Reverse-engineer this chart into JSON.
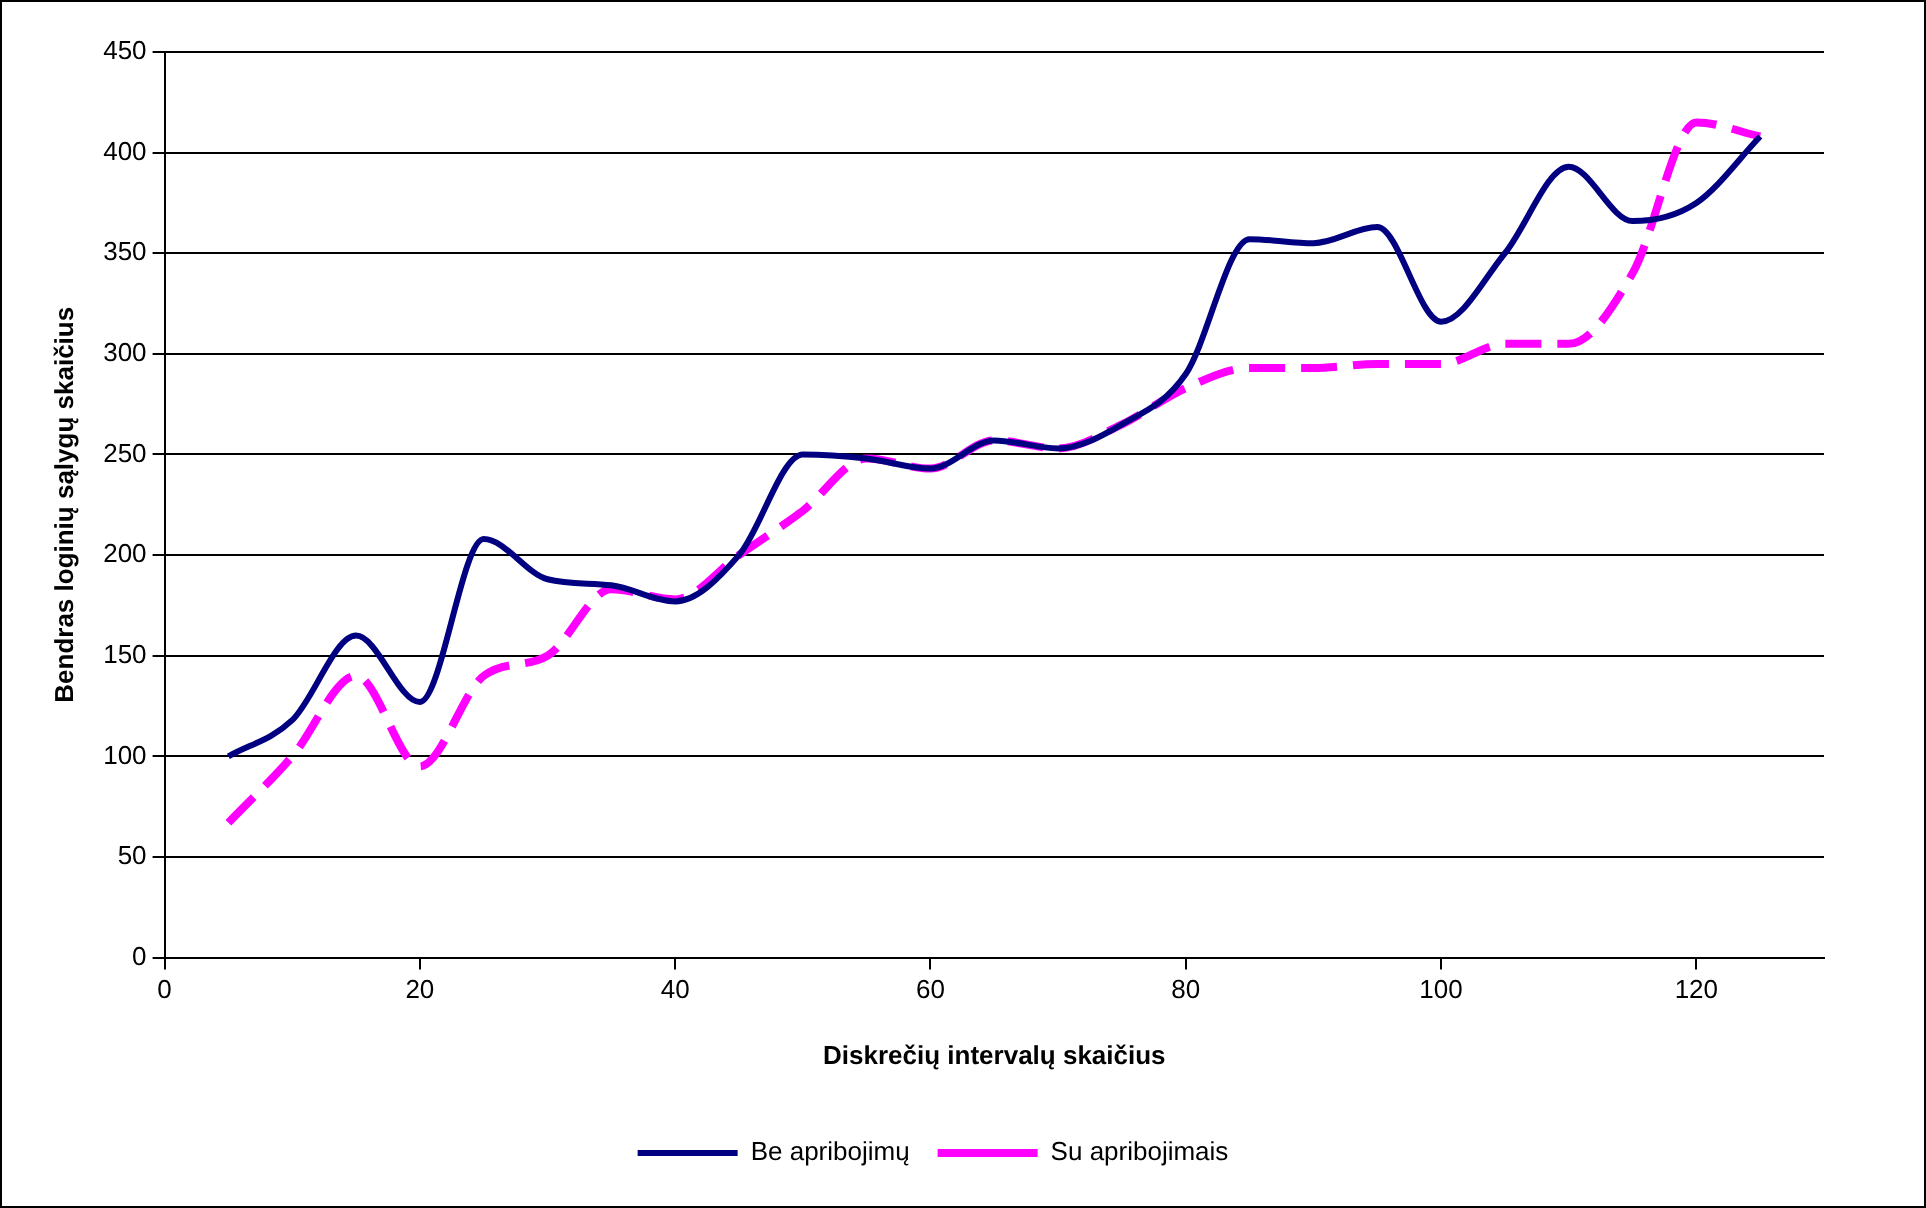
{
  "chart_data": {
    "type": "line",
    "xlabel": "Diskrečių intervalų skaičius",
    "ylabel": "Bendras loginių sąlygų skaičius",
    "x": [
      5,
      10,
      15,
      20,
      25,
      30,
      35,
      40,
      45,
      50,
      55,
      60,
      65,
      70,
      75,
      80,
      85,
      90,
      95,
      100,
      105,
      110,
      115,
      120,
      125
    ],
    "series": [
      {
        "name": "Be apribojimų",
        "color": "#000080",
        "line_style": "solid",
        "values": [
          100,
          118,
          160,
          127,
          208,
          188,
          185,
          177,
          200,
          250,
          248,
          243,
          257,
          253,
          265,
          290,
          357,
          355,
          363,
          316,
          350,
          393,
          366,
          375,
          408
        ]
      },
      {
        "name": "Su apribojimais",
        "color": "#ff00ff",
        "line_style": "dashed",
        "values": [
          67,
          100,
          140,
          95,
          140,
          150,
          183,
          178,
          200,
          222,
          248,
          243,
          257,
          253,
          265,
          283,
          293,
          293,
          295,
          295,
          305,
          305,
          340,
          415,
          408
        ]
      }
    ],
    "xlim": [
      0,
      130
    ],
    "xticks": [
      0,
      20,
      40,
      60,
      80,
      100,
      120
    ],
    "ylim": [
      0,
      450
    ],
    "yticks": [
      0,
      50,
      100,
      150,
      200,
      250,
      300,
      350,
      400,
      450
    ],
    "grid": "y",
    "legend": "bottom",
    "marker": "none"
  }
}
